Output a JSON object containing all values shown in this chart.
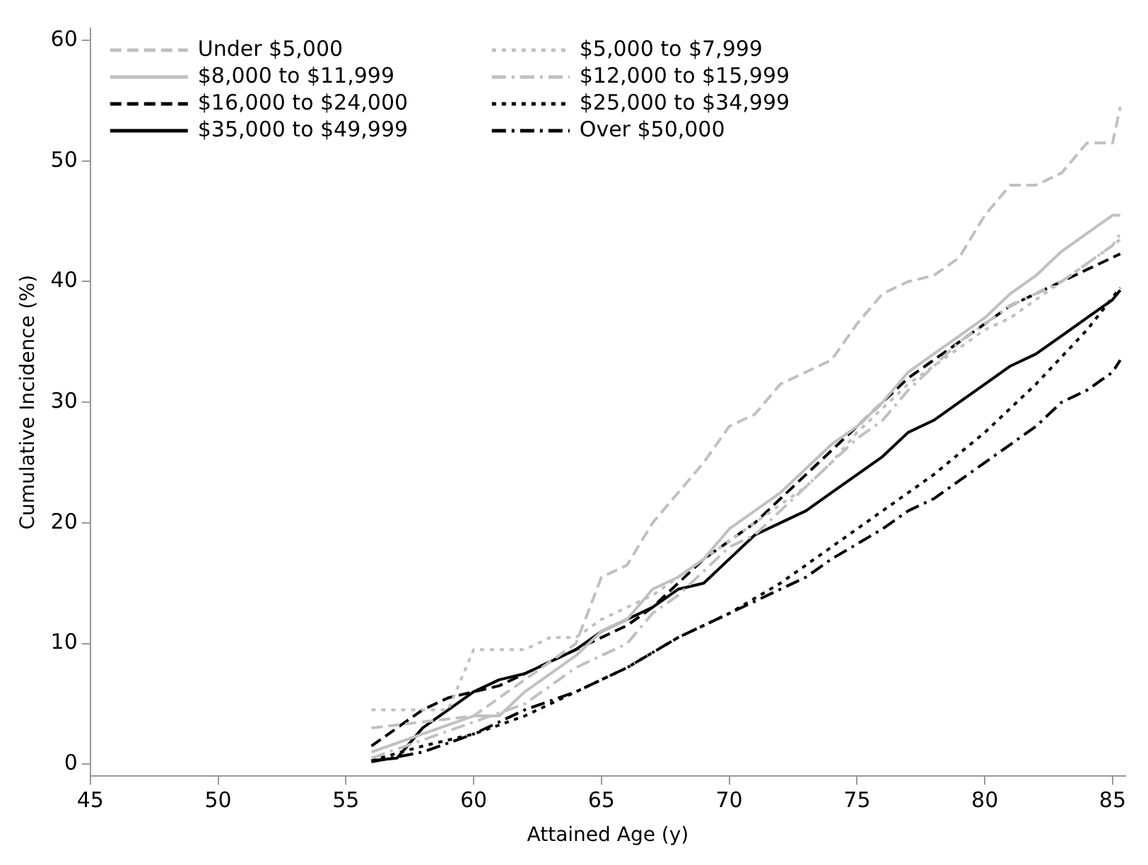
{
  "chart_data": {
    "type": "line",
    "xlabel": "Attained Age (y)",
    "ylabel": "Cumulative Incidence (%)",
    "xlim": [
      45,
      85.5
    ],
    "xticks": [
      45,
      50,
      55,
      60,
      65,
      70,
      75,
      80,
      85
    ],
    "ylim": [
      -1,
      61
    ],
    "yticks": [
      0,
      10,
      20,
      30,
      40,
      50,
      60
    ],
    "grid": false,
    "legend": "top left",
    "marker": "none",
    "series": [
      {
        "name": "Under $5,000",
        "color": "#c0c0c0",
        "line_style": "dashed",
        "x": [
          56,
          58,
          60,
          62,
          64,
          65,
          66,
          67,
          68,
          69,
          70,
          71,
          72,
          73,
          74,
          75,
          76,
          77,
          78,
          79,
          80,
          81,
          82,
          83,
          84,
          85,
          85.3
        ],
        "values": [
          3,
          3.5,
          4,
          7,
          10,
          15.5,
          16.5,
          20,
          22.5,
          25,
          28,
          29,
          31.5,
          32.5,
          33.5,
          36.5,
          39,
          40,
          40.5,
          42,
          45.5,
          48,
          48,
          49,
          51.5,
          51.5,
          54.5
        ]
      },
      {
        "name": "$5,000 to $7,999",
        "color": "#c0c0c0",
        "line_style": "dotted",
        "x": [
          56,
          59,
          60,
          62,
          63,
          64,
          65,
          66,
          67,
          68,
          69,
          70,
          71,
          72,
          73,
          74,
          75,
          76,
          77,
          78,
          79,
          80,
          81,
          82,
          83,
          84,
          85,
          85.3
        ],
        "values": [
          4.5,
          4.5,
          9.5,
          9.5,
          10.5,
          10.5,
          12,
          13,
          14,
          15.5,
          17,
          18.5,
          20,
          21.5,
          23,
          25,
          27.5,
          29.5,
          31.5,
          33,
          34.5,
          36,
          37,
          38.5,
          40,
          41.5,
          43,
          43.5
        ]
      },
      {
        "name": "$8,000 to $11,999",
        "color": "#c0c0c0",
        "line_style": "solid",
        "x": [
          56,
          58,
          60,
          61,
          62,
          63,
          64,
          65,
          66,
          67,
          68,
          69,
          70,
          71,
          72,
          73,
          74,
          75,
          76,
          77,
          78,
          79,
          80,
          81,
          82,
          83,
          84,
          85,
          85.3
        ],
        "values": [
          1,
          2.5,
          4,
          4,
          6,
          7.5,
          9,
          11,
          12,
          14.5,
          15.5,
          17,
          19.5,
          21,
          22.5,
          24.5,
          26.5,
          28,
          30,
          32.5,
          34,
          35.5,
          37,
          39,
          40.5,
          42.5,
          44,
          45.5,
          45.5
        ]
      },
      {
        "name": "$12,000 to $15,999",
        "color": "#c0c0c0",
        "line_style": "dashdot",
        "x": [
          56,
          58,
          60,
          62,
          64,
          65,
          66,
          67,
          68,
          69,
          70,
          71,
          72,
          73,
          74,
          75,
          76,
          77,
          78,
          79,
          80,
          81,
          82,
          83,
          84,
          85,
          85.3
        ],
        "values": [
          0.5,
          2,
          3.5,
          5,
          8,
          9,
          10,
          12.5,
          14,
          16,
          18,
          19,
          21,
          23,
          25,
          27,
          28.5,
          31,
          33,
          35,
          36.5,
          38,
          39,
          40,
          41.5,
          43,
          44
        ]
      },
      {
        "name": "$16,000 to $24,000",
        "color": "#000000",
        "line_style": "dashed",
        "x": [
          56,
          57,
          58,
          59,
          60,
          61,
          62,
          63,
          64,
          65,
          66,
          67,
          68,
          69,
          70,
          71,
          72,
          73,
          74,
          75,
          76,
          77,
          78,
          79,
          80,
          81,
          82,
          83,
          84,
          85,
          85.3
        ],
        "values": [
          1.5,
          3,
          4.5,
          5.5,
          6,
          6.5,
          7.5,
          8.5,
          9.5,
          10.5,
          11.5,
          13,
          15,
          17,
          18.5,
          20,
          22,
          24,
          26,
          28,
          30,
          32,
          33.5,
          35,
          36.5,
          38,
          39,
          40,
          41,
          42,
          42.3
        ]
      },
      {
        "name": "$25,000 to $34,999",
        "color": "#000000",
        "line_style": "dotted",
        "x": [
          56,
          58,
          60,
          62,
          64,
          66,
          68,
          70,
          72,
          74,
          76,
          78,
          80,
          82,
          84,
          85.3
        ],
        "values": [
          0.3,
          1.5,
          2.5,
          4,
          6,
          8,
          10.5,
          12.5,
          15,
          18,
          21,
          24,
          27.5,
          31.5,
          36,
          39.5
        ]
      },
      {
        "name": "$35,000 to $49,999",
        "color": "#000000",
        "line_style": "solid",
        "x": [
          56,
          57,
          58,
          59,
          60,
          61,
          62,
          63,
          64,
          65,
          66,
          67,
          68,
          69,
          70,
          71,
          72,
          73,
          74,
          75,
          76,
          77,
          78,
          79,
          80,
          81,
          82,
          83,
          84,
          85,
          85.3
        ],
        "values": [
          0.3,
          0.5,
          3,
          4.5,
          6,
          7,
          7.5,
          8.5,
          9.5,
          11,
          12,
          13,
          14.5,
          15,
          17,
          19,
          20,
          21,
          22.5,
          24,
          25.5,
          27.5,
          28.5,
          30,
          31.5,
          33,
          34,
          35.5,
          37,
          38.5,
          39.3
        ]
      },
      {
        "name": "Over $50,000",
        "color": "#000000",
        "line_style": "dashdot",
        "x": [
          56,
          58,
          60,
          62,
          64,
          66,
          68,
          70,
          72,
          73,
          74,
          76,
          77,
          78,
          80,
          82,
          83,
          84,
          85,
          85.3
        ],
        "values": [
          0.2,
          1,
          2.5,
          4.5,
          6,
          8,
          10.5,
          12.5,
          14.5,
          15.5,
          17,
          19.5,
          21,
          22,
          25,
          28,
          30,
          31,
          32.5,
          33.5
        ]
      }
    ]
  }
}
